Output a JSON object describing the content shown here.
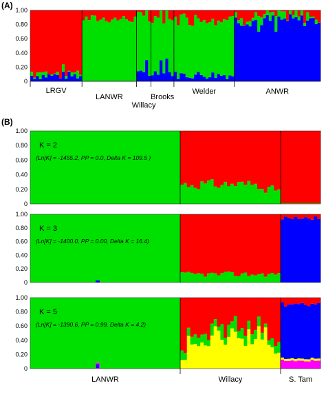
{
  "figure": {
    "panel_a_label": "(A)",
    "panel_b_label": "(B)"
  },
  "colors": {
    "cluster1": "#ff0000",
    "cluster2": "#00e000",
    "cluster3": "#0000ff",
    "cluster4": "#ffff00",
    "cluster5": "#ff00ff"
  },
  "chart_data": [
    {
      "type": "bar",
      "stacked": true,
      "panel": "A",
      "ylim": [
        0,
        1
      ],
      "yticks": [
        "0",
        "0.20",
        "0.40",
        "0.60",
        "0.80",
        "1.00"
      ],
      "groups": [
        {
          "label": "LRGV",
          "n": 18,
          "bottom_layer": "blue",
          "blue_mean": 0.08,
          "green_mean": 0.05
        },
        {
          "label": "LANWR",
          "n": 19,
          "bottom_layer": "blue",
          "blue_mean": 0.0,
          "green_mean": 0.88
        },
        {
          "label": "Willacy",
          "n": 5,
          "bottom_layer": "blue",
          "blue_mean": 0.1,
          "green_mean": 0.78
        },
        {
          "label": "Brooks",
          "n": 8,
          "bottom_layer": "blue",
          "blue_mean": 0.12,
          "green_mean": 0.75
        },
        {
          "label": "Welder",
          "n": 21,
          "bottom_layer": "blue",
          "blue_mean": 0.09,
          "green_mean": 0.8
        },
        {
          "label": "ANWR",
          "n": 30,
          "bottom_layer": "blue",
          "blue_mean": 0.86,
          "green_mean": 0.06
        }
      ]
    },
    {
      "type": "bar",
      "stacked": true,
      "panel": "B",
      "k": 2,
      "annotation_k": "K = 2",
      "annotation_stats": "(Ln[K] = -1455.2, PP = 0.0, Delta K = 109.5 )",
      "ylim": [
        0,
        1
      ],
      "yticks": [
        "0",
        "0.20",
        "0.40",
        "0.60",
        "0.80",
        "1.00"
      ],
      "groups": [
        {
          "label": "LANWR",
          "green_mean": 1.0,
          "blue_mean": 0.0,
          "yellow_mean": 0.0,
          "magenta_mean": 0.0
        },
        {
          "label": "Willacy",
          "green_mean": 0.27,
          "blue_mean": 0.0,
          "yellow_mean": 0.0,
          "magenta_mean": 0.0
        },
        {
          "label": "S. Tam",
          "green_mean": 0.01,
          "blue_mean": 0.0,
          "yellow_mean": 0.0,
          "magenta_mean": 0.0
        }
      ]
    },
    {
      "type": "bar",
      "stacked": true,
      "panel": "B",
      "k": 3,
      "annotation_k": "K = 3",
      "annotation_stats": "(Ln[K] = -1400.0, PP = 0.00, Delta K = 16.4)",
      "ylim": [
        0,
        1
      ],
      "yticks": [
        "0",
        "0.20",
        "0.40",
        "0.60",
        "0.80",
        "1.00"
      ],
      "groups": [
        {
          "label": "LANWR",
          "green_mean": 1.0,
          "blue_mean": 0.0,
          "yellow_mean": 0.0,
          "magenta_mean": 0.0
        },
        {
          "label": "Willacy",
          "green_mean": 0.12,
          "blue_mean": 0.0,
          "yellow_mean": 0.0,
          "magenta_mean": 0.0
        },
        {
          "label": "S. Tam",
          "green_mean": 0.0,
          "blue_mean": 0.95,
          "yellow_mean": 0.0,
          "magenta_mean": 0.0
        }
      ]
    },
    {
      "type": "bar",
      "stacked": true,
      "panel": "B",
      "k": 5,
      "annotation_k": "K = 5",
      "annotation_stats": "(Ln[K] = -1390.6, PP = 0.99, Delta K = 4.2)",
      "ylim": [
        0,
        1
      ],
      "yticks": [
        "0",
        "0.20",
        "0.40",
        "0.60",
        "0.80",
        "1.00"
      ],
      "groups": [
        {
          "label": "LANWR",
          "green_mean": 1.0,
          "blue_mean": 0.0,
          "yellow_mean": 0.0,
          "magenta_mean": 0.0
        },
        {
          "label": "Willacy",
          "green_mean": 0.08,
          "blue_mean": 0.0,
          "yellow_mean": 0.45,
          "magenta_mean": 0.0
        },
        {
          "label": "S. Tam",
          "green_mean": 0.0,
          "blue_mean": 0.72,
          "yellow_mean": 0.03,
          "magenta_mean": 0.12
        }
      ]
    }
  ]
}
